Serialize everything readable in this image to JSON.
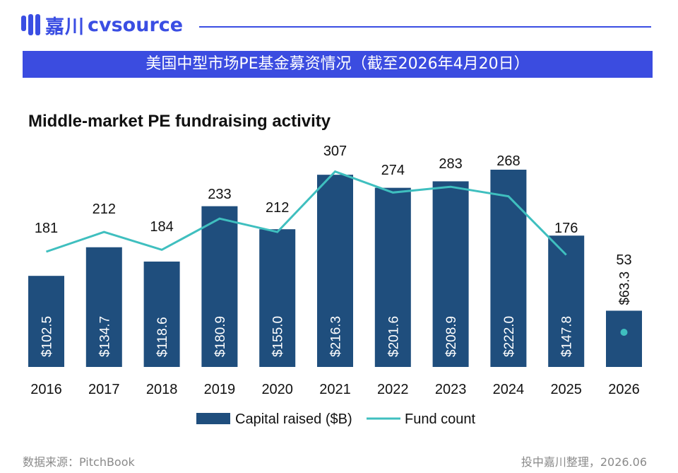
{
  "header": {
    "logo_cn": "嘉川",
    "logo_en": "cvsource",
    "banner_title": "美国中型市场PE基金募资情况（截至2026年4月20日）"
  },
  "footer": {
    "source": "数据来源：PitchBook",
    "credit": "投中嘉川整理，2026.06"
  },
  "colors": {
    "bar": "#1f4e7d",
    "line": "#3fbfbf",
    "banner": "#3b4ce0",
    "brand": "#3a4ee3"
  },
  "chart_data": {
    "type": "bar",
    "title": "Middle-market PE fundraising activity",
    "categories": [
      "2016",
      "2017",
      "2018",
      "2019",
      "2020",
      "2021",
      "2022",
      "2023",
      "2024",
      "2025",
      "2026"
    ],
    "series": [
      {
        "name": "Capital raised ($B)",
        "type": "bar",
        "values": [
          102.5,
          134.7,
          118.6,
          180.9,
          155.0,
          216.3,
          201.6,
          208.9,
          222.0,
          147.8,
          63.3
        ],
        "labels": [
          "$102.5",
          "$134.7",
          "$118.6",
          "$180.9",
          "$155.0",
          "$216.3",
          "$201.6",
          "$208.9",
          "$222.0",
          "$147.8",
          "$63.3"
        ]
      },
      {
        "name": "Fund count",
        "type": "line",
        "values": [
          181,
          212,
          184,
          233,
          212,
          307,
          274,
          283,
          268,
          176,
          53
        ]
      }
    ],
    "legend_position": "bottom",
    "grid": false
  }
}
